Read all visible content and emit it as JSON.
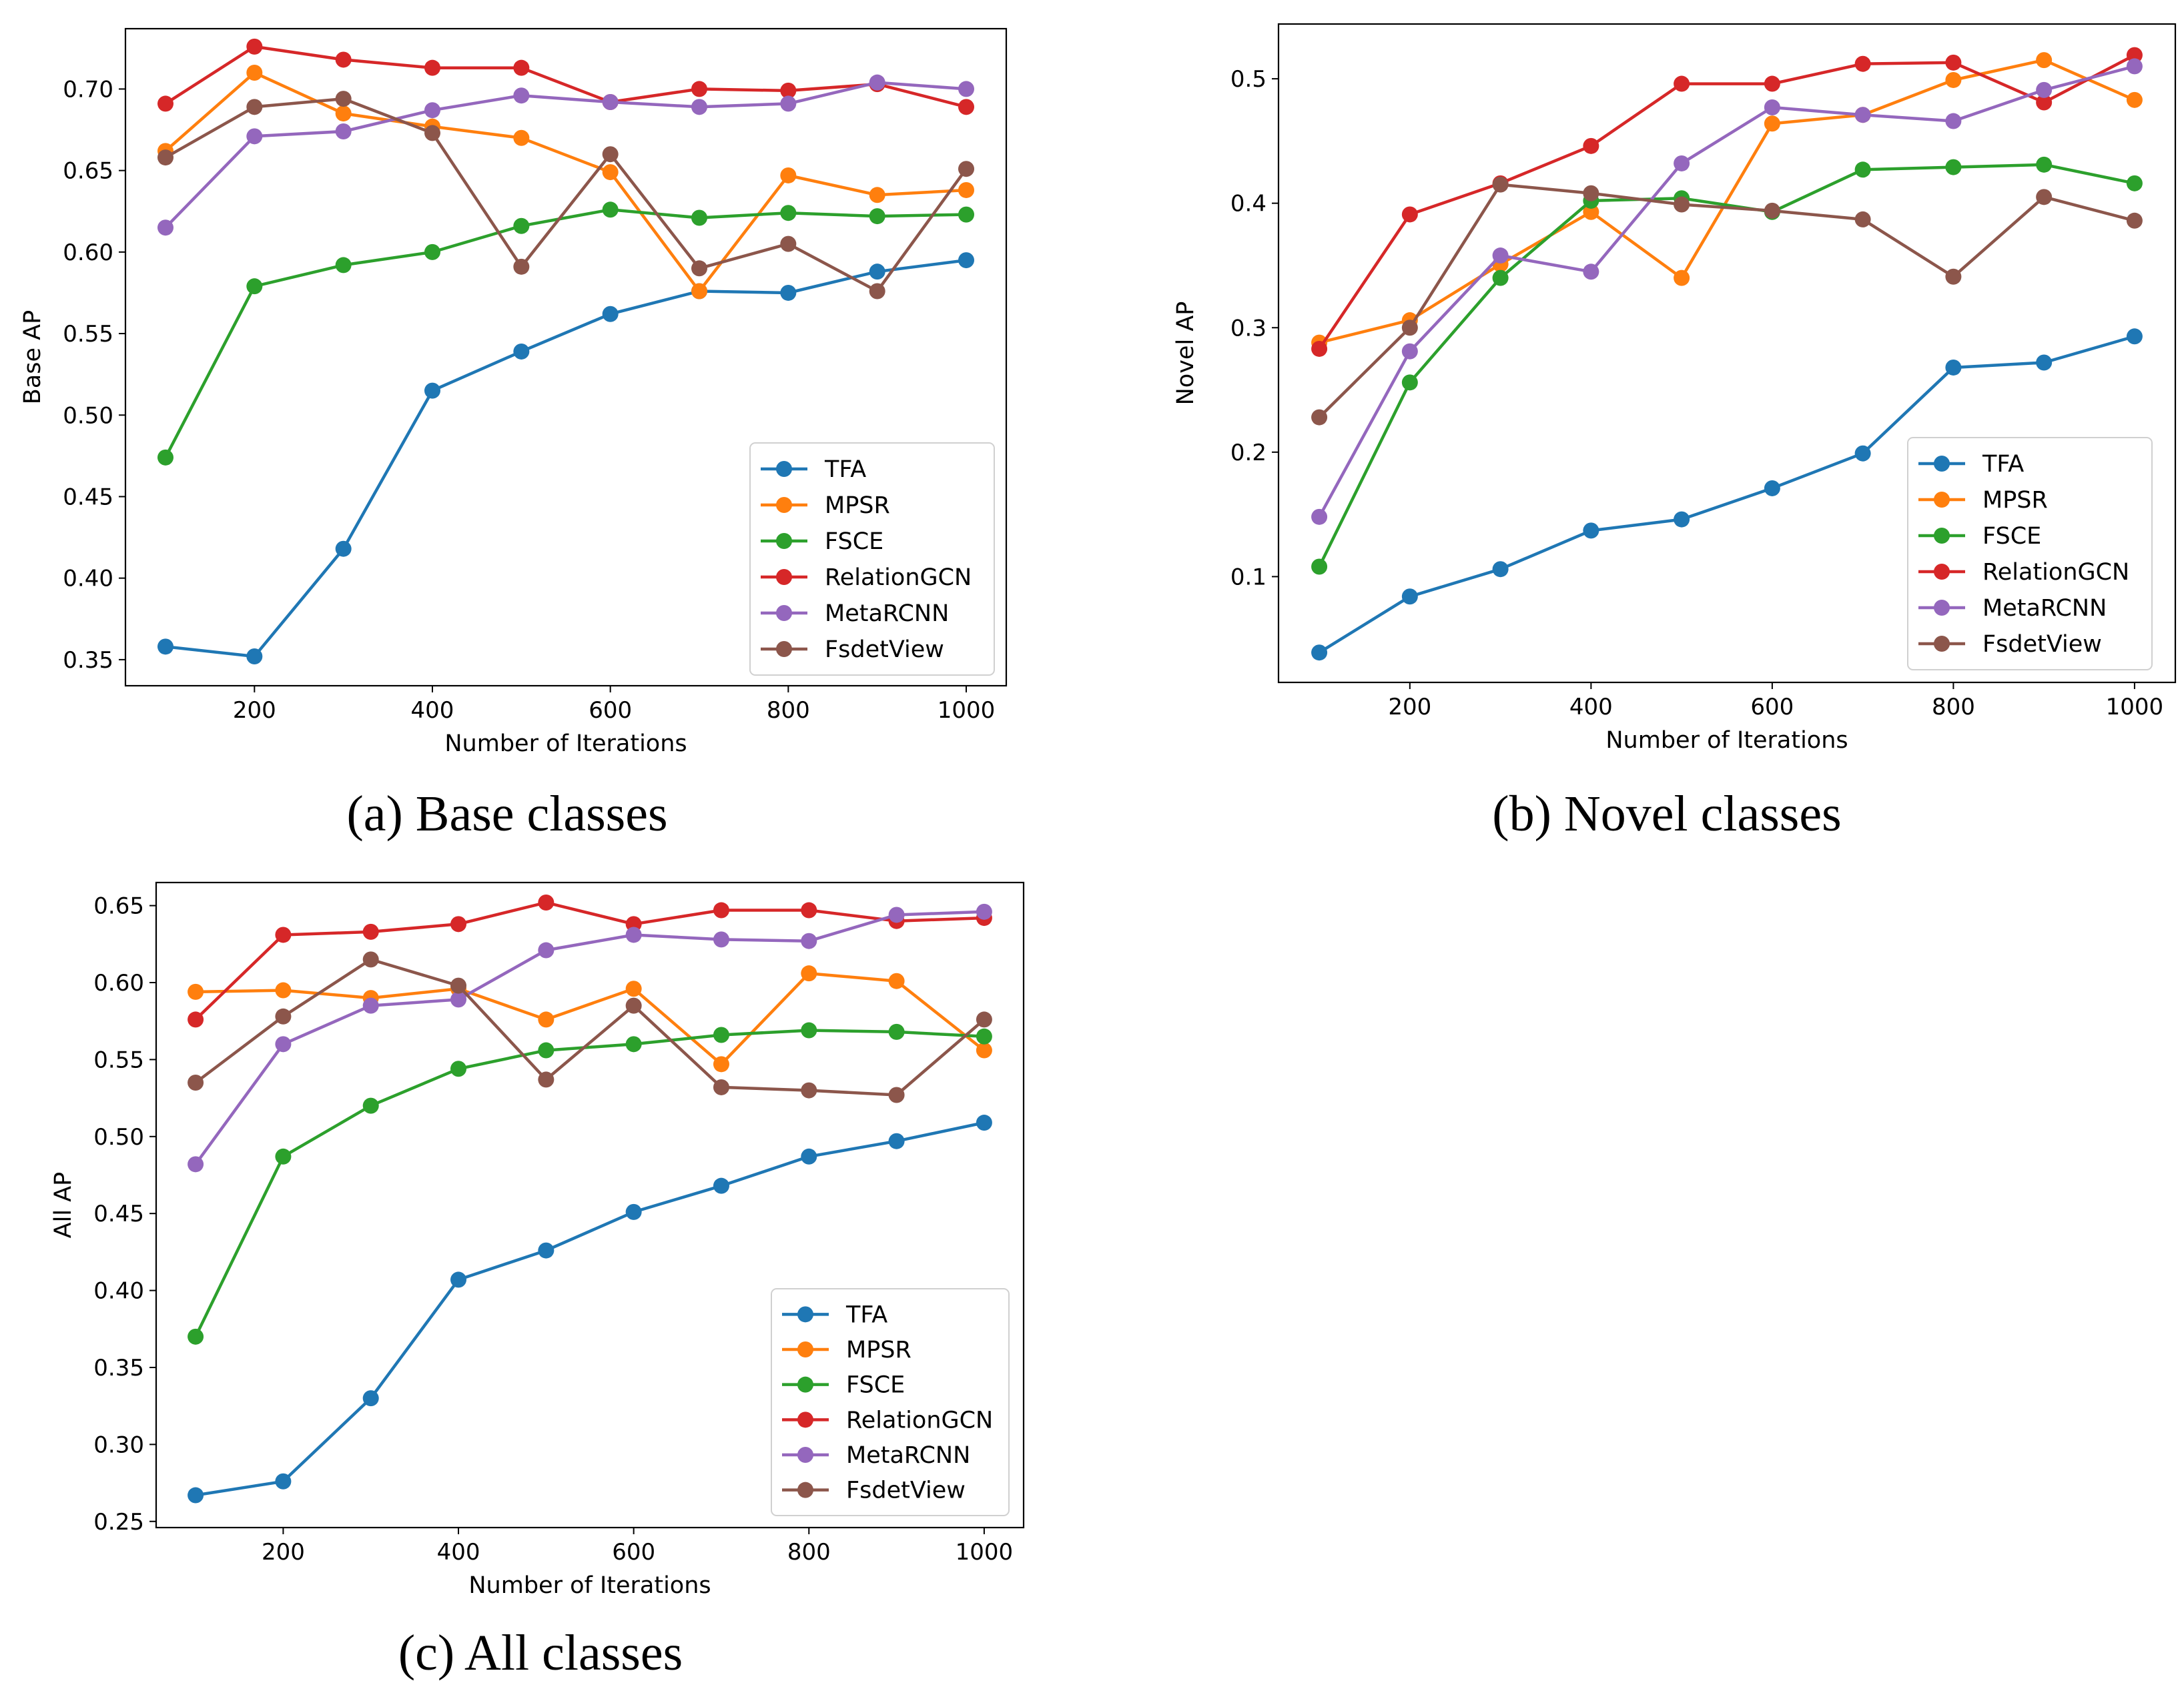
{
  "colors": {
    "TFA": "#1f77b4",
    "MPSR": "#ff7f0e",
    "FSCE": "#2ca02c",
    "RelationGCN": "#d62728",
    "MetaRCNN": "#9467bd",
    "FsdetView": "#8c564b"
  },
  "chart_data": [
    {
      "type": "line",
      "caption": "(a) Base classes",
      "xlabel": "Number of Iterations",
      "ylabel": "Base AP",
      "xlim": [
        55,
        1045
      ],
      "ylim": [
        0.334,
        0.737
      ],
      "xticks": [
        200,
        400,
        600,
        800,
        1000
      ],
      "yticks": [
        0.35,
        0.4,
        0.45,
        0.5,
        0.55,
        0.6,
        0.65,
        0.7
      ],
      "ytick_labels": [
        "0.35",
        "0.40",
        "0.45",
        "0.50",
        "0.55",
        "0.60",
        "0.65",
        "0.70"
      ],
      "legend": "lower-right",
      "x": [
        100,
        200,
        300,
        400,
        500,
        600,
        700,
        800,
        900,
        1000
      ],
      "series": [
        {
          "name": "TFA",
          "values": [
            0.358,
            0.352,
            0.418,
            0.515,
            0.539,
            0.562,
            0.576,
            0.575,
            0.588,
            0.595
          ]
        },
        {
          "name": "MPSR",
          "values": [
            0.662,
            0.71,
            0.685,
            0.677,
            0.67,
            0.649,
            0.576,
            0.647,
            0.635,
            0.638
          ]
        },
        {
          "name": "FSCE",
          "values": [
            0.474,
            0.579,
            0.592,
            0.6,
            0.616,
            0.626,
            0.621,
            0.624,
            0.622,
            0.623
          ]
        },
        {
          "name": "RelationGCN",
          "values": [
            0.691,
            0.726,
            0.718,
            0.713,
            0.713,
            0.692,
            0.7,
            0.699,
            0.703,
            0.689
          ]
        },
        {
          "name": "MetaRCNN",
          "values": [
            0.615,
            0.671,
            0.674,
            0.687,
            0.696,
            0.692,
            0.689,
            0.691,
            0.704,
            0.7
          ]
        },
        {
          "name": "FsdetView",
          "values": [
            0.658,
            0.689,
            0.694,
            0.673,
            0.591,
            0.66,
            0.59,
            0.605,
            0.576,
            0.651
          ]
        }
      ]
    },
    {
      "type": "line",
      "caption": "(b) Novel classes",
      "xlabel": "Number of Iterations",
      "ylabel": "Novel AP",
      "xlim": [
        55,
        1045
      ],
      "ylim": [
        0.015,
        0.544
      ],
      "xticks": [
        200,
        400,
        600,
        800,
        1000
      ],
      "yticks": [
        0.1,
        0.2,
        0.3,
        0.4,
        0.5
      ],
      "ytick_labels": [
        "0.1",
        "0.2",
        "0.3",
        "0.4",
        "0.5"
      ],
      "legend": "lower-right",
      "x": [
        100,
        200,
        300,
        400,
        500,
        600,
        700,
        800,
        900,
        1000
      ],
      "series": [
        {
          "name": "TFA",
          "values": [
            0.039,
            0.084,
            0.106,
            0.137,
            0.146,
            0.171,
            0.199,
            0.268,
            0.272,
            0.293
          ]
        },
        {
          "name": "MPSR",
          "values": [
            0.288,
            0.306,
            0.351,
            0.393,
            0.34,
            0.464,
            0.471,
            0.499,
            0.515,
            0.483
          ]
        },
        {
          "name": "FSCE",
          "values": [
            0.108,
            0.256,
            0.34,
            0.402,
            0.404,
            0.393,
            0.427,
            0.429,
            0.431,
            0.416
          ]
        },
        {
          "name": "RelationGCN",
          "values": [
            0.283,
            0.391,
            0.416,
            0.446,
            0.496,
            0.496,
            0.512,
            0.513,
            0.481,
            0.519
          ]
        },
        {
          "name": "MetaRCNN",
          "values": [
            0.148,
            0.281,
            0.358,
            0.345,
            0.432,
            0.477,
            0.471,
            0.466,
            0.491,
            0.51
          ]
        },
        {
          "name": "FsdetView",
          "values": [
            0.228,
            0.3,
            0.415,
            0.408,
            0.399,
            0.394,
            0.387,
            0.341,
            0.405,
            0.386
          ]
        }
      ]
    },
    {
      "type": "line",
      "caption": "(c) All classes",
      "xlabel": "Number of Iterations",
      "ylabel": "All AP",
      "xlim": [
        55,
        1045
      ],
      "ylim": [
        0.246,
        0.665
      ],
      "xticks": [
        200,
        400,
        600,
        800,
        1000
      ],
      "yticks": [
        0.25,
        0.3,
        0.35,
        0.4,
        0.45,
        0.5,
        0.55,
        0.6,
        0.65
      ],
      "ytick_labels": [
        "0.25",
        "0.30",
        "0.35",
        "0.40",
        "0.45",
        "0.50",
        "0.55",
        "0.60",
        "0.65"
      ],
      "legend": "lower-right",
      "x": [
        100,
        200,
        300,
        400,
        500,
        600,
        700,
        800,
        900,
        1000
      ],
      "series": [
        {
          "name": "TFA",
          "values": [
            0.267,
            0.276,
            0.33,
            0.407,
            0.426,
            0.451,
            0.468,
            0.487,
            0.497,
            0.509
          ]
        },
        {
          "name": "MPSR",
          "values": [
            0.594,
            0.595,
            0.59,
            0.596,
            0.576,
            0.596,
            0.547,
            0.606,
            0.601,
            0.556
          ]
        },
        {
          "name": "FSCE",
          "values": [
            0.37,
            0.487,
            0.52,
            0.544,
            0.556,
            0.56,
            0.566,
            0.569,
            0.568,
            0.565
          ]
        },
        {
          "name": "RelationGCN",
          "values": [
            0.576,
            0.631,
            0.633,
            0.638,
            0.652,
            0.638,
            0.647,
            0.647,
            0.64,
            0.642
          ]
        },
        {
          "name": "MetaRCNN",
          "values": [
            0.482,
            0.56,
            0.585,
            0.589,
            0.621,
            0.631,
            0.628,
            0.627,
            0.644,
            0.646
          ]
        },
        {
          "name": "FsdetView",
          "values": [
            0.535,
            0.578,
            0.615,
            0.598,
            0.537,
            0.585,
            0.532,
            0.53,
            0.527,
            0.576
          ]
        }
      ]
    }
  ]
}
